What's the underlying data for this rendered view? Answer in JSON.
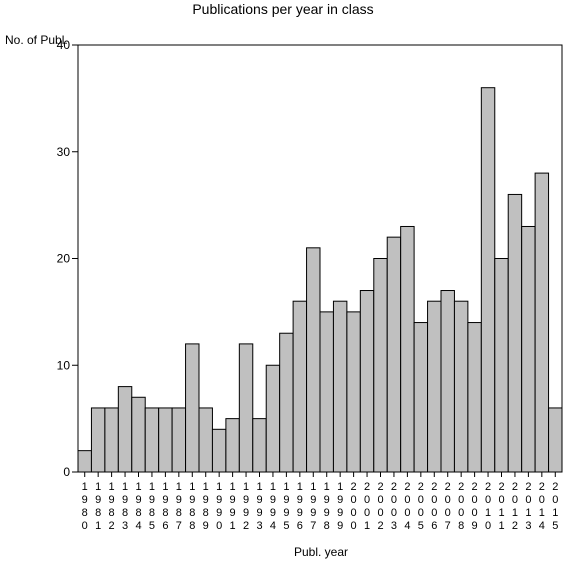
{
  "chart_data": {
    "type": "bar",
    "title": "Publications per year in class",
    "ylabel": "No. of Publ.",
    "xlabel": "Publ. year",
    "ylim": [
      0,
      40
    ],
    "yticks": [
      "0",
      "10",
      "20",
      "30",
      "40"
    ],
    "grid": false,
    "bar_color": "#c0c0c0",
    "categories": [
      "1980",
      "1981",
      "1982",
      "1983",
      "1984",
      "1985",
      "1986",
      "1987",
      "1988",
      "1989",
      "1990",
      "1991",
      "1992",
      "1993",
      "1994",
      "1995",
      "1996",
      "1997",
      "1998",
      "1999",
      "2000",
      "2001",
      "2002",
      "2003",
      "2004",
      "2005",
      "2006",
      "2007",
      "2008",
      "2009",
      "2010",
      "2011",
      "2012",
      "2013",
      "2014",
      "2015"
    ],
    "values": [
      2,
      6,
      6,
      8,
      7,
      6,
      6,
      6,
      12,
      6,
      4,
      5,
      12,
      5,
      10,
      13,
      16,
      21,
      15,
      16,
      15,
      17,
      20,
      22,
      23,
      14,
      16,
      17,
      16,
      14,
      36,
      20,
      26,
      23,
      28,
      6
    ]
  }
}
